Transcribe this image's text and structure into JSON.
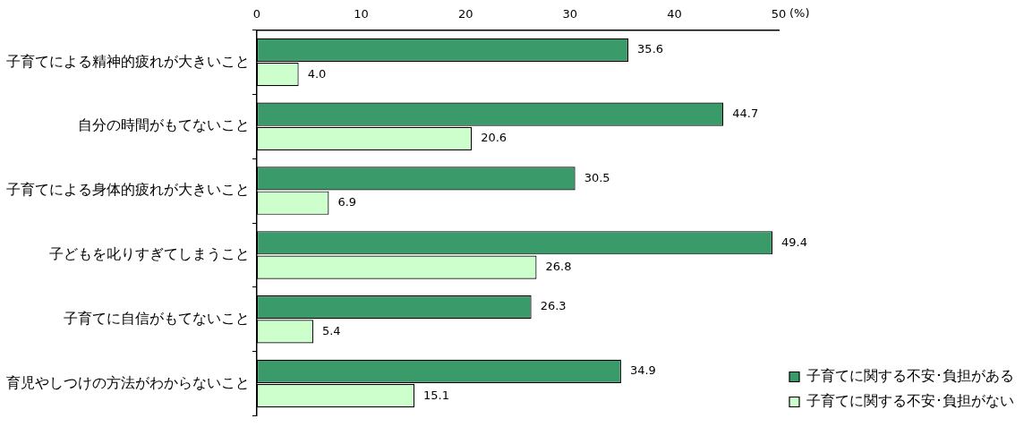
{
  "chart_data": {
    "type": "bar",
    "orientation": "horizontal",
    "xlabel": "(%)",
    "categories": [
      "子育てによる精神的疲れが大きいこと",
      "自分の時間がもてないこと",
      "子育てによる身体的疲れが大きいこと",
      "子どもを叱りすぎてしまうこと",
      "子育てに自信がもてないこと",
      "育児やしつけの方法がわからないこと"
    ],
    "series": [
      {
        "name": "子育てに関する不安･負担がある",
        "color": "#3a9a6a",
        "values": [
          35.6,
          44.7,
          30.5,
          49.4,
          26.3,
          34.9
        ],
        "value_labels": [
          "35.6",
          "44.7",
          "30.5",
          "49.4",
          "26.3",
          "34.9"
        ]
      },
      {
        "name": "子育てに関する不安･負担がない",
        "color": "#ccffcc",
        "values": [
          4.0,
          20.6,
          6.9,
          26.8,
          5.4,
          15.1
        ],
        "value_labels": [
          "4.0",
          "20.6",
          "6.9",
          "26.8",
          "5.4",
          "15.1"
        ]
      }
    ],
    "xlim": [
      0,
      50
    ],
    "xticks": [
      0,
      10,
      20,
      30,
      40,
      50
    ],
    "grid": false,
    "legend": "bottom right"
  }
}
